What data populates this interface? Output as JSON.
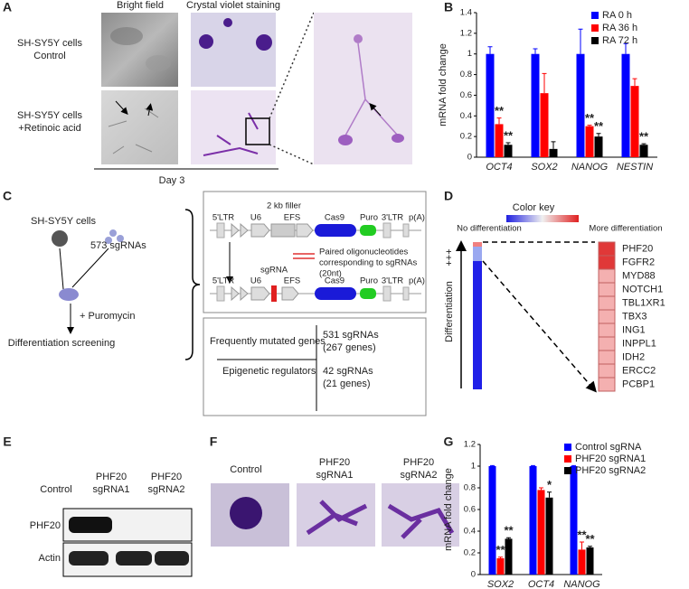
{
  "panel_labels": [
    "A",
    "B",
    "C",
    "D",
    "E",
    "F",
    "G"
  ],
  "panel_a": {
    "columns": [
      "Bright field",
      "Crystal violet staining"
    ],
    "rows": [
      [
        "SH-SY5Y cells",
        "Control"
      ],
      [
        "SH-SY5Y cells",
        "+Retinoic acid"
      ]
    ],
    "timepoint": "Day 3"
  },
  "panel_c": {
    "cells": "SH-SY5Y cells",
    "library": "573 sgRNAs",
    "selection": "+ Puromycin",
    "screen": "Differentiation screening",
    "vector_1": [
      "5'LTR",
      "U6",
      "2 kb filler",
      "EFS",
      "Cas9",
      "Puro",
      "3'LTR",
      "p(A)"
    ],
    "oligo_note": [
      "Paired oligonucleotides",
      "corresponding to sgRNAs",
      "(20nt)"
    ],
    "vector_2": [
      "5'LTR",
      "U6",
      "sgRNA",
      "EFS",
      "Cas9",
      "Puro",
      "3'LTR",
      "p(A)"
    ],
    "table": {
      "rows": [
        [
          "Frequently mutated genes",
          [
            "531 sgRNAs",
            "(267 genes)"
          ]
        ],
        [
          "Epigenetic regulators",
          [
            "42 sgRNAs",
            "(21 genes)"
          ]
        ]
      ]
    }
  },
  "panel_d": {
    "color_key": "Color key",
    "key_low": "No differentiation",
    "key_high": "More differentiation",
    "axis_label": "Differentiation",
    "axis_mark": "+++",
    "genes": [
      "PHF20",
      "FGFR2",
      "MYD88",
      "NOTCH1",
      "TBL1XR1",
      "TBX3",
      "ING1",
      "INPPL1",
      "IDH2",
      "ERCC2",
      "PCBP1"
    ]
  },
  "panel_e": {
    "lanes": [
      [
        "Control"
      ],
      [
        "PHF20",
        "sgRNA1"
      ],
      [
        "PHF20",
        "sgRNA2"
      ]
    ],
    "bands": [
      "PHF20",
      "Actin"
    ]
  },
  "panel_f": {
    "images": [
      [
        "Control"
      ],
      [
        "PHF20",
        "sgRNA1"
      ],
      [
        "PHF20",
        "sgRNA2"
      ]
    ]
  },
  "chart_data": [
    {
      "type": "bar",
      "y_label": "mRNA fold change",
      "categories": [
        "OCT4",
        "SOX2",
        "NANOG",
        "NESTIN"
      ],
      "series": [
        {
          "name": "RA 0 h",
          "color": "#0000ff",
          "values": [
            1,
            1,
            1,
            1
          ],
          "errors": [
            0.07,
            0.05,
            0.24,
            0.1
          ]
        },
        {
          "name": "RA 36 h",
          "color": "#ff0000",
          "values": [
            0.32,
            0.62,
            0.3,
            0.69
          ],
          "errors": [
            0.06,
            0.19,
            0.01,
            0.07
          ],
          "annotations": [
            "**",
            null,
            "**",
            null
          ]
        },
        {
          "name": "RA 72 h",
          "color": "#000000",
          "values": [
            0.12,
            0.08,
            0.2,
            0.12
          ],
          "errors": [
            0.02,
            0.07,
            0.03,
            0.01
          ],
          "annotations": [
            "**",
            null,
            "**",
            "**"
          ]
        }
      ],
      "ylim": [
        0,
        1.4
      ],
      "yticks": [
        0,
        0.2,
        0.4,
        0.6,
        0.8,
        1,
        1.2,
        1.4
      ],
      "legend": "upper right"
    },
    {
      "type": "bar",
      "y_label": "mRNA fold change",
      "categories": [
        "SOX2",
        "OCT4",
        "NANOG"
      ],
      "series": [
        {
          "name": "Control sgRNA",
          "color": "#0000ff",
          "values": [
            1,
            1,
            1
          ],
          "errors": [
            0.005,
            0.005,
            0.005
          ]
        },
        {
          "name": "PHF20 sgRNA1",
          "color": "#ff0000",
          "values": [
            0.15,
            0.78,
            0.23
          ],
          "errors": [
            0.01,
            0.02,
            0.07
          ],
          "annotations": [
            "**",
            null,
            "**"
          ]
        },
        {
          "name": "PHF20 sgRNA2",
          "color": "#000000",
          "values": [
            0.33,
            0.71,
            0.25
          ],
          "errors": [
            0.01,
            0.05,
            0.01
          ],
          "annotations": [
            "**",
            "*",
            "**"
          ]
        }
      ],
      "ylim": [
        0,
        1.2
      ],
      "yticks": [
        0,
        0.2,
        0.4,
        0.6,
        0.8,
        1,
        1.2
      ],
      "legend": "upper right"
    }
  ]
}
